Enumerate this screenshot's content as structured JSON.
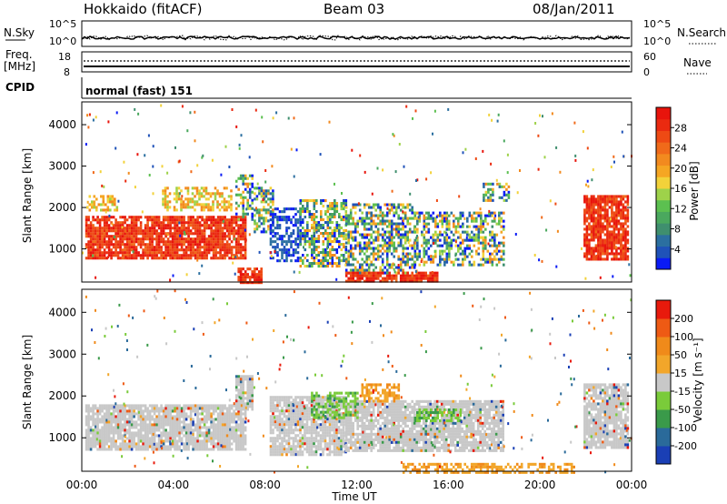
{
  "header": {
    "station": "Hokkaido (fitACF)",
    "beam": "Beam 03",
    "date": "08/Jan/2011"
  },
  "top_panels": {
    "nsky": {
      "label": "N.Sky",
      "ticks": [
        "10^5",
        "10^0"
      ]
    },
    "nsearch": {
      "label": "N.Search",
      "ticks": [
        "10^5",
        "10^0"
      ]
    },
    "freq": {
      "label_line1": "Freq.",
      "label_line2": "[MHz]",
      "ticks": [
        "18",
        "8"
      ]
    },
    "nave": {
      "label": "Nave",
      "ticks": [
        "60",
        "0"
      ]
    },
    "cpid": {
      "label": "CPID",
      "value": "normal (fast) 151"
    }
  },
  "chart_data": [
    {
      "type": "heatmap",
      "name": "power",
      "ylabel": "Slant Range [km]",
      "xlabel": "Time UT",
      "x_ticks": [
        "00:00",
        "04:00",
        "08:00",
        "12:00",
        "16:00",
        "20:00",
        "00:00"
      ],
      "y_ticks": [
        "1000",
        "2000",
        "3000",
        "4000"
      ],
      "ylim": [
        200,
        4550
      ],
      "xlim_hours": [
        0,
        24
      ],
      "colorbar": {
        "label": "Power [dB]",
        "ticks": [
          "4",
          "8",
          "12",
          "16",
          "20",
          "24",
          "28"
        ],
        "colors": [
          "#0a1bf5",
          "#1f52b8",
          "#2b6fa0",
          "#3f8f6e",
          "#4aa85e",
          "#5cc050",
          "#9ed24a",
          "#f2d23a",
          "#f5a623",
          "#f28a1f",
          "#f06a1a",
          "#ee4a14",
          "#ea2a10",
          "#e8140c"
        ]
      },
      "regions": [
        {
          "t": [
            0.15,
            7.1
          ],
          "r": [
            750,
            1800
          ],
          "level": "high"
        },
        {
          "t": [
            0.2,
            1.5
          ],
          "r": [
            1950,
            2300
          ],
          "level": "medium"
        },
        {
          "t": [
            3.5,
            6.5
          ],
          "r": [
            1950,
            2500
          ],
          "level": "medium"
        },
        {
          "t": [
            6.7,
            7.4
          ],
          "r": [
            1700,
            2800
          ],
          "level": "mixed"
        },
        {
          "t": [
            7.5,
            8.3
          ],
          "r": [
            1400,
            2500
          ],
          "level": "mixed"
        },
        {
          "t": [
            8.2,
            9.5
          ],
          "r": [
            700,
            2000
          ],
          "level": "low"
        },
        {
          "t": [
            9.5,
            11.5
          ],
          "r": [
            600,
            2200
          ],
          "level": "mixed"
        },
        {
          "t": [
            11.5,
            14.5
          ],
          "r": [
            400,
            2100
          ],
          "level": "mixed"
        },
        {
          "t": [
            14.5,
            18.4
          ],
          "r": [
            600,
            1900
          ],
          "level": "mixed"
        },
        {
          "t": [
            17.5,
            18.6
          ],
          "r": [
            2200,
            2600
          ],
          "level": "mixed"
        },
        {
          "t": [
            21.9,
            23.8
          ],
          "r": [
            750,
            2300
          ],
          "level": "high"
        },
        {
          "t": [
            6.8,
            7.8
          ],
          "r": [
            200,
            550
          ],
          "level": "high"
        },
        {
          "t": [
            11.5,
            15.5
          ],
          "r": [
            200,
            450
          ],
          "level": "high"
        }
      ]
    },
    {
      "type": "heatmap",
      "name": "velocity",
      "ylabel": "Slant Range [km]",
      "xlabel": "Time UT",
      "x_ticks": [
        "00:00",
        "04:00",
        "08:00",
        "12:00",
        "16:00",
        "20:00",
        "00:00"
      ],
      "y_ticks": [
        "1000",
        "2000",
        "3000",
        "4000"
      ],
      "ylim": [
        200,
        4550
      ],
      "xlim_hours": [
        0,
        24
      ],
      "colorbar": {
        "label": "Velocity [m s⁻¹]",
        "ticks": [
          "200",
          "100",
          "50",
          "15",
          "-15",
          "-50",
          "-100",
          "-200"
        ],
        "colors": [
          "#1a3fb5",
          "#2a6a9a",
          "#3a9a4a",
          "#7acb3a",
          "#c8c8c8",
          "#f2a62a",
          "#f08a1a",
          "#ee5a14",
          "#e81a0c"
        ]
      },
      "regions": [
        {
          "t": [
            0.15,
            7.1
          ],
          "r": [
            750,
            1800
          ],
          "level": "grey"
        },
        {
          "t": [
            6.7,
            7.4
          ],
          "r": [
            1700,
            2500
          ],
          "level": "grey"
        },
        {
          "t": [
            8.2,
            11.5
          ],
          "r": [
            600,
            2000
          ],
          "level": "grey"
        },
        {
          "t": [
            11.5,
            18.4
          ],
          "r": [
            700,
            1900
          ],
          "level": "grey"
        },
        {
          "t": [
            21.9,
            23.8
          ],
          "r": [
            750,
            2300
          ],
          "level": "grey"
        },
        {
          "t": [
            10.0,
            12.0
          ],
          "r": [
            1500,
            2100
          ],
          "level": "green"
        },
        {
          "t": [
            12.2,
            13.8
          ],
          "r": [
            1900,
            2300
          ],
          "level": "orange"
        },
        {
          "t": [
            14.5,
            16.5
          ],
          "r": [
            1400,
            1700
          ],
          "level": "green"
        },
        {
          "t": [
            14.0,
            21.5
          ],
          "r": [
            200,
            400
          ],
          "level": "orange"
        }
      ]
    }
  ]
}
